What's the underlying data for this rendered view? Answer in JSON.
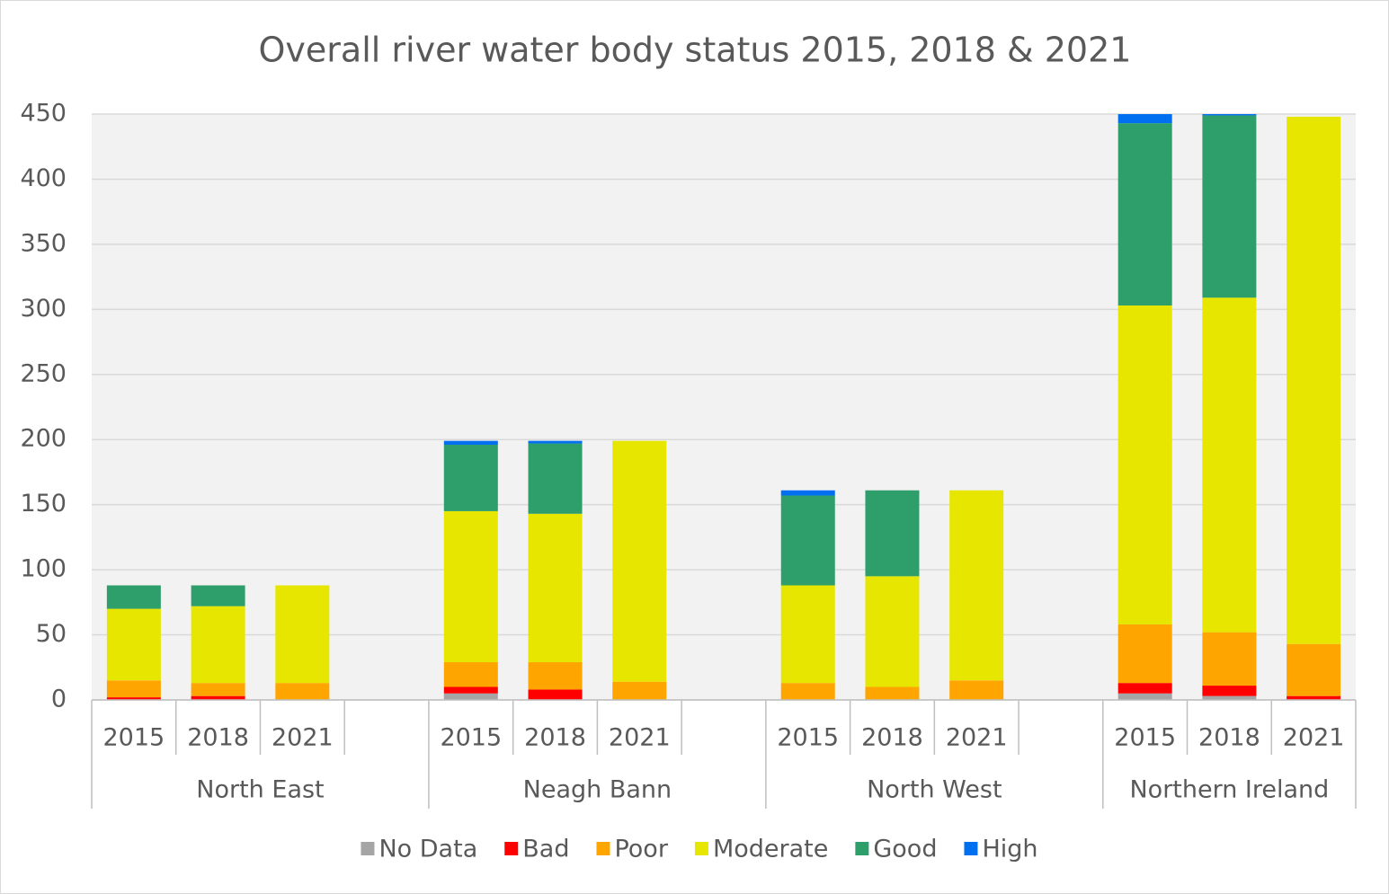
{
  "chart_data": {
    "type": "stacked-bar",
    "title": "Overall river water body status 2015, 2018 & 2021",
    "categories": [
      "2015",
      "2018",
      "2021",
      null,
      "2015",
      "2018",
      "2021",
      null,
      "2015",
      "2018",
      "2021",
      null,
      "2015",
      "2018",
      "2021"
    ],
    "groups": [
      "North East",
      "Neagh Bann",
      "North West",
      "Northern Ireland"
    ],
    "series": [
      {
        "name": "No Data",
        "color": "#a5a5a5",
        "values": [
          0,
          0,
          0,
          null,
          5,
          0,
          0,
          null,
          0,
          0,
          0,
          null,
          5,
          3,
          0
        ]
      },
      {
        "name": "Bad",
        "color": "#ff0000",
        "values": [
          2,
          3,
          0,
          null,
          5,
          8,
          0,
          null,
          0,
          0,
          0,
          null,
          8,
          8,
          3
        ]
      },
      {
        "name": "Poor",
        "color": "#ffa500",
        "values": [
          13,
          10,
          13,
          null,
          19,
          21,
          14,
          null,
          13,
          10,
          15,
          null,
          45,
          41,
          40
        ]
      },
      {
        "name": "Moderate",
        "color": "#e6e600",
        "values": [
          55,
          59,
          75,
          null,
          116,
          114,
          185,
          null,
          75,
          85,
          146,
          null,
          245,
          257,
          405
        ]
      },
      {
        "name": "Good",
        "color": "#2e9e6b",
        "values": [
          18,
          16,
          0,
          null,
          51,
          54,
          0,
          null,
          69,
          66,
          0,
          null,
          140,
          140,
          0
        ]
      },
      {
        "name": "High",
        "color": "#0070f0",
        "values": [
          0,
          0,
          0,
          null,
          3,
          2,
          0,
          null,
          4,
          0,
          0,
          null,
          7,
          1,
          0
        ]
      }
    ],
    "ylim": [
      0,
      450
    ],
    "yticks": [
      0,
      50,
      100,
      150,
      200,
      250,
      300,
      350,
      400,
      450
    ],
    "grid": true
  }
}
